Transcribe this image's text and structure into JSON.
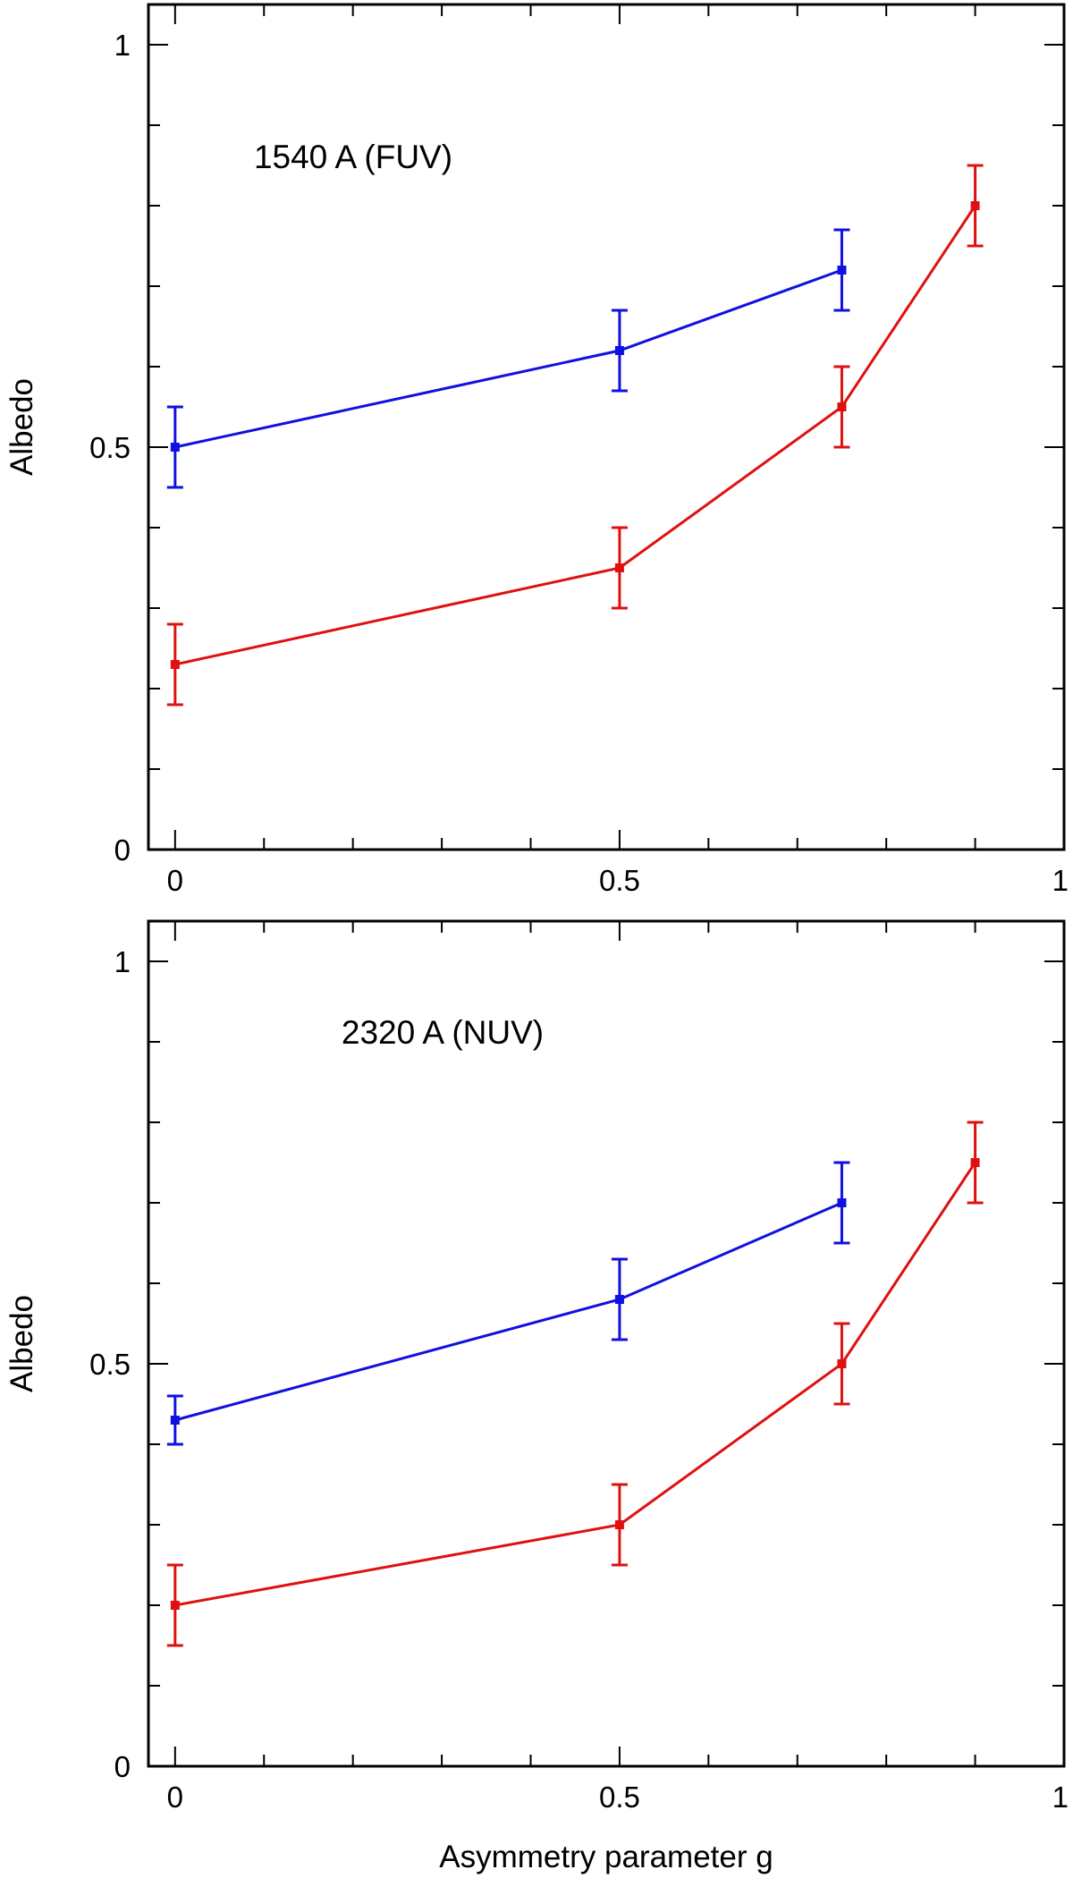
{
  "chart_data": [
    {
      "type": "line",
      "title": "",
      "annotation": "1540 A (FUV)",
      "xlabel": "",
      "ylabel": "Albedo",
      "xlim": [
        -0.03,
        1.0
      ],
      "ylim": [
        0,
        1.05
      ],
      "xticks": [
        {
          "value": 0,
          "label": "0"
        },
        {
          "value": 0.5,
          "label": "0.5"
        },
        {
          "value": 1,
          "label": "1"
        }
      ],
      "yticks": [
        {
          "value": 0,
          "label": "0"
        },
        {
          "value": 0.5,
          "label": "0.5"
        },
        {
          "value": 1,
          "label": "1"
        }
      ],
      "x_minor_step": 0.1,
      "y_minor_step": 0.1,
      "grid": false,
      "series": [
        {
          "color": "#1010e0",
          "x": [
            0,
            0.5,
            0.75
          ],
          "y": [
            0.5,
            0.62,
            0.72
          ],
          "err": [
            0.05,
            0.05,
            0.05
          ]
        },
        {
          "color": "#e01010",
          "x": [
            0,
            0.5,
            0.75,
            0.9
          ],
          "y": [
            0.23,
            0.35,
            0.55,
            0.8
          ],
          "err": [
            0.05,
            0.05,
            0.05,
            0.05
          ]
        }
      ]
    },
    {
      "type": "line",
      "title": "",
      "annotation": "2320 A (NUV)",
      "xlabel": "Asymmetry parameter g",
      "ylabel": "Albedo",
      "xlim": [
        -0.03,
        1.0
      ],
      "ylim": [
        0,
        1.05
      ],
      "xticks": [
        {
          "value": 0,
          "label": "0"
        },
        {
          "value": 0.5,
          "label": "0.5"
        },
        {
          "value": 1,
          "label": "1"
        }
      ],
      "yticks": [
        {
          "value": 0,
          "label": "0"
        },
        {
          "value": 0.5,
          "label": "0.5"
        },
        {
          "value": 1,
          "label": "1"
        }
      ],
      "x_minor_step": 0.1,
      "y_minor_step": 0.1,
      "grid": false,
      "series": [
        {
          "color": "#1010e0",
          "x": [
            0,
            0.5,
            0.75
          ],
          "y": [
            0.43,
            0.58,
            0.7
          ],
          "err": [
            0.03,
            0.05,
            0.05
          ]
        },
        {
          "color": "#e01010",
          "x": [
            0,
            0.5,
            0.75,
            0.9
          ],
          "y": [
            0.2,
            0.3,
            0.5,
            0.75
          ],
          "err": [
            0.05,
            0.05,
            0.05,
            0.05
          ]
        }
      ]
    }
  ]
}
